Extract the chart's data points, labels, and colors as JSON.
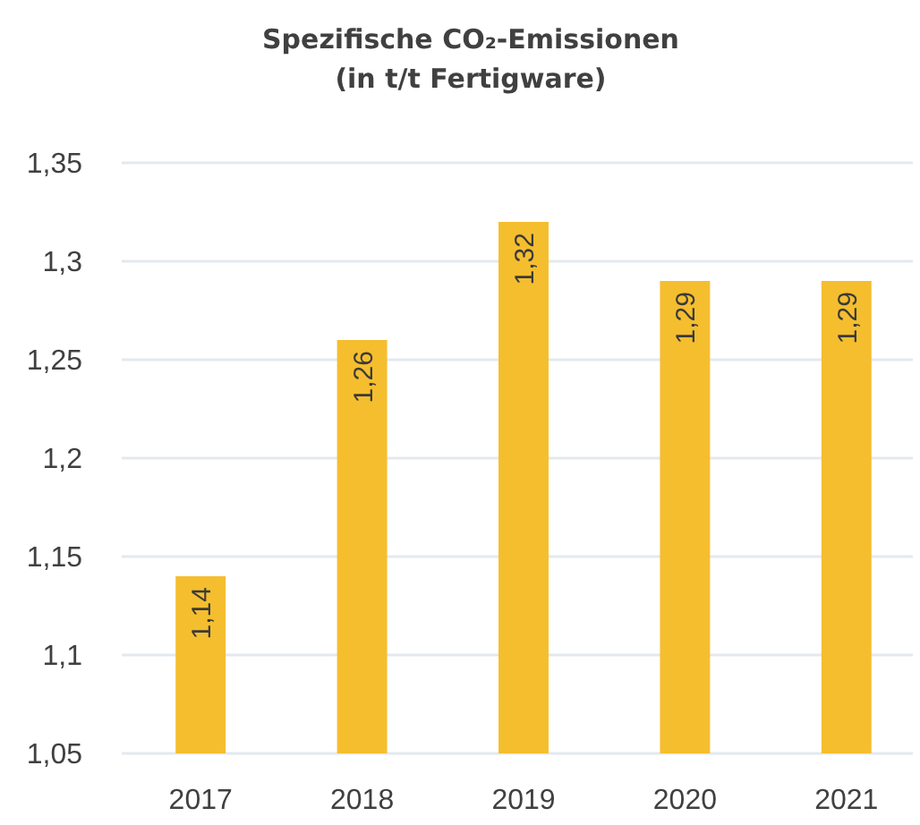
{
  "chart_data": {
    "type": "bar",
    "title": "Spezifische CO₂-Emissionen\n(in t/t Fertigware)",
    "categories": [
      "2017",
      "2018",
      "2019",
      "2020",
      "2021"
    ],
    "values": [
      1.14,
      1.26,
      1.32,
      1.29,
      1.29
    ],
    "value_labels": [
      "1,14",
      "1,26",
      "1,32",
      "1,29",
      "1,29"
    ],
    "color": "#f5be2f",
    "ylim": [
      1.05,
      1.35
    ],
    "yticks": [
      {
        "value": 1.05,
        "label": "1,05"
      },
      {
        "value": 1.1,
        "label": "1,1"
      },
      {
        "value": 1.15,
        "label": "1,15"
      },
      {
        "value": 1.2,
        "label": "1,2"
      },
      {
        "value": 1.25,
        "label": "1,25"
      },
      {
        "value": 1.3,
        "label": "1,3"
      },
      {
        "value": 1.35,
        "label": "1,35"
      }
    ],
    "grid": "y"
  }
}
